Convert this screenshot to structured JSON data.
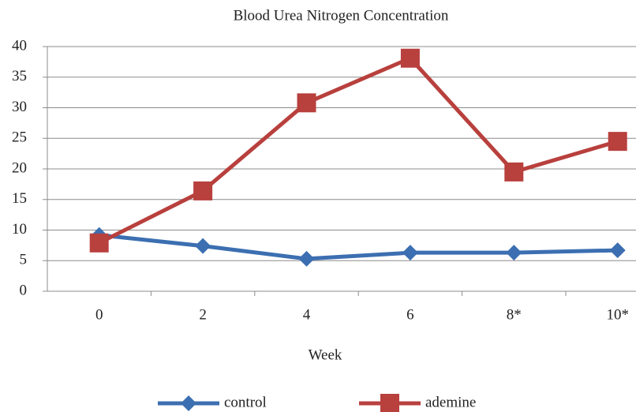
{
  "chart_data": {
    "type": "line",
    "title": "Blood Urea Nitrogen Concentration",
    "x_label": "Week",
    "categories": [
      "0",
      "2",
      "4",
      "6",
      "8*",
      "10*"
    ],
    "series": [
      {
        "name": "control",
        "color": "#3c6fb1",
        "marker": "diamond",
        "values": [
          9.2,
          7.4,
          5.3,
          6.3,
          6.3,
          6.7
        ]
      },
      {
        "name": "ademine",
        "color": "#b8403d",
        "marker": "square",
        "values": [
          7.9,
          16.4,
          30.8,
          38.1,
          19.5,
          24.5
        ]
      }
    ],
    "ylim": [
      0,
      40
    ],
    "yticks": [
      0,
      5,
      10,
      15,
      20,
      25,
      30,
      35,
      40
    ],
    "grid": true,
    "legend": "bottom"
  }
}
